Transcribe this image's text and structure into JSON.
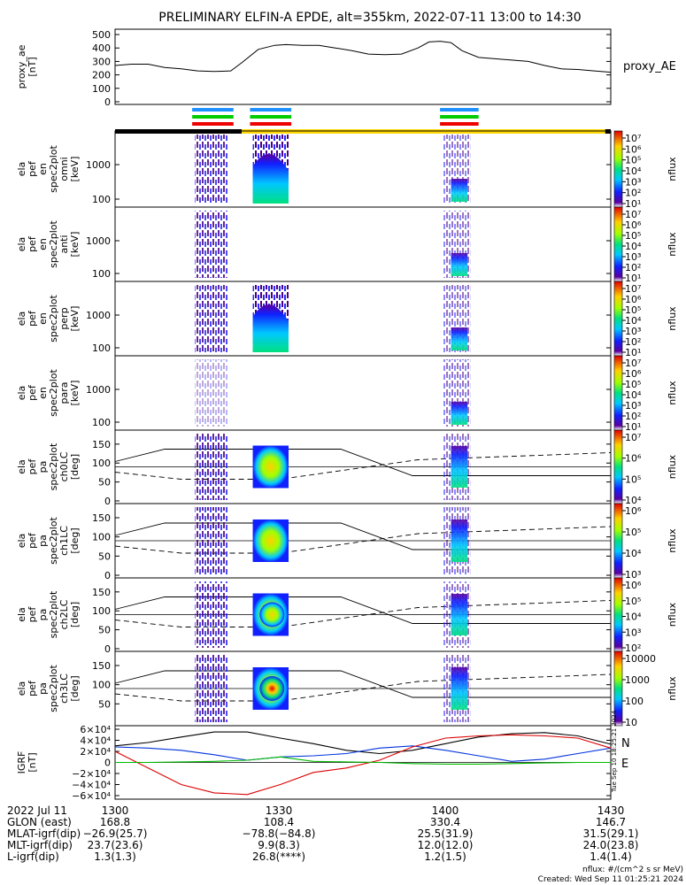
{
  "title": "PRELIMINARY ELFIN-A EPDE, alt=355km, 2022-07-11 13:00 to 14:30",
  "chart_data": {
    "type": "multi-panel",
    "time_range": [
      "13:00",
      "14:30"
    ],
    "panels": [
      {
        "id": "proxy_ae",
        "type": "line",
        "ylabel": [
          "proxy_ae",
          "[nT]"
        ],
        "legend": "proxy_AE",
        "ylim": [
          0,
          520
        ],
        "yticks": [
          "500",
          "400",
          "300",
          "200",
          "100",
          "0"
        ],
        "x_minutes": [
          0,
          3,
          6,
          9,
          12,
          15,
          18,
          21,
          23,
          26,
          29,
          31,
          34,
          37,
          40,
          43,
          46,
          49,
          52,
          55,
          57,
          59,
          61,
          63,
          66,
          69,
          72,
          75,
          78,
          81,
          84,
          87,
          90
        ],
        "values": [
          270,
          280,
          280,
          255,
          245,
          230,
          225,
          230,
          290,
          390,
          420,
          425,
          420,
          420,
          400,
          380,
          355,
          350,
          355,
          400,
          445,
          450,
          440,
          380,
          330,
          320,
          310,
          300,
          270,
          245,
          240,
          230,
          220
        ]
      },
      {
        "id": "omni",
        "type": "spectrogram",
        "ylabel": [
          "ela",
          "pef",
          "en",
          "spec2plot",
          "omni",
          "[keV]"
        ],
        "yticks": [
          "1000",
          "100"
        ],
        "colorbar": {
          "label": "nflux",
          "ticks": [
            "10⁷",
            "10⁶",
            "10⁵",
            "10⁴",
            "10³",
            "10²",
            "10¹"
          ]
        }
      },
      {
        "id": "anti",
        "type": "spectrogram",
        "ylabel": [
          "ela",
          "pef",
          "en",
          "spec2plot",
          "anti",
          "[keV]"
        ],
        "yticks": [
          "1000",
          "100"
        ],
        "colorbar": {
          "label": "nflux",
          "ticks": [
            "10⁷",
            "10⁶",
            "10⁵",
            "10⁴",
            "10³",
            "10²",
            "10¹"
          ]
        }
      },
      {
        "id": "perp",
        "type": "spectrogram",
        "ylabel": [
          "ela",
          "pef",
          "en",
          "spec2plot",
          "perp",
          "[keV]"
        ],
        "yticks": [
          "1000",
          "100"
        ],
        "colorbar": {
          "label": "nflux",
          "ticks": [
            "10⁷",
            "10⁶",
            "10⁵",
            "10⁴",
            "10³",
            "10²",
            "10¹"
          ]
        }
      },
      {
        "id": "para",
        "type": "spectrogram",
        "ylabel": [
          "ela",
          "pef",
          "en",
          "spec2plot",
          "para",
          "[keV]"
        ],
        "yticks": [
          "1000",
          "100"
        ],
        "colorbar": {
          "label": "nflux",
          "ticks": [
            "10⁷",
            "10⁶",
            "10⁵",
            "10⁴",
            "10³",
            "10²",
            "10¹"
          ]
        }
      },
      {
        "id": "ch0LC",
        "type": "spectrogram",
        "ylabel": [
          "ela",
          "pef",
          "pa",
          "spec2plot",
          "ch0LC",
          "[deg]"
        ],
        "yticks": [
          "150",
          "100",
          "50",
          "0"
        ],
        "colorbar": {
          "label": "nflux",
          "ticks": [
            "10⁷",
            "10⁶",
            "10⁵",
            "10⁴"
          ]
        }
      },
      {
        "id": "ch1LC",
        "type": "spectrogram",
        "ylabel": [
          "ela",
          "pef",
          "pa",
          "spec2plot",
          "ch1LC",
          "[deg]"
        ],
        "yticks": [
          "150",
          "100",
          "50",
          "0"
        ],
        "colorbar": {
          "label": "nflux",
          "ticks": [
            "10⁶",
            "10⁵",
            "10⁴",
            "10³"
          ]
        }
      },
      {
        "id": "ch2LC",
        "type": "spectrogram",
        "ylabel": [
          "ela",
          "pef",
          "pa",
          "spec2plot",
          "ch2LC",
          "[deg]"
        ],
        "yticks": [
          "150",
          "100",
          "50",
          "0"
        ],
        "colorbar": {
          "label": "nflux",
          "ticks": [
            "10⁶",
            "10⁵",
            "10⁴",
            "10³",
            "10²"
          ]
        }
      },
      {
        "id": "ch3LC",
        "type": "spectrogram",
        "ylabel": [
          "ela",
          "pef",
          "pa",
          "spec2plot",
          "ch3LC",
          "[deg]"
        ],
        "yticks": [
          "150",
          "100",
          "50"
        ],
        "colorbar": {
          "label": "nflux",
          "ticks": [
            "10000",
            "1000",
            "100",
            "10"
          ]
        }
      },
      {
        "id": "igrf",
        "type": "line",
        "ylabel": [
          "IGRF",
          "[nT]"
        ],
        "yticks": [
          "6×10⁴",
          "4×10⁴",
          "2×10⁴",
          "0",
          "−2×10⁴",
          "−4×10⁴",
          "−6×10⁴"
        ],
        "ylim": [
          -60000,
          60000
        ],
        "legend": [
          "N",
          "E"
        ],
        "x_minutes": [
          0,
          6,
          12,
          18,
          24,
          30,
          36,
          42,
          48,
          54,
          60,
          66,
          72,
          78,
          84,
          90
        ],
        "series": [
          {
            "color": "#000000",
            "values": [
              30000,
              36000,
              46000,
              55000,
              55000,
              44000,
              34000,
              22000,
              16000,
              22000,
              34000,
              46000,
              52000,
              54000,
              48000,
              33000
            ]
          },
          {
            "color": "#0033dd",
            "values": [
              28000,
              26000,
              22000,
              14000,
              4000,
              10000,
              12000,
              16000,
              26000,
              30000,
              22000,
              12000,
              2000,
              6000,
              16000,
              26000
            ]
          },
          {
            "color": "#dd0000",
            "values": [
              20000,
              -10000,
              -40000,
              -55000,
              -58000,
              -40000,
              -18000,
              -10000,
              4000,
              28000,
              44000,
              48000,
              50000,
              48000,
              44000,
              26000
            ]
          },
          {
            "color": "#00bb00",
            "values": [
              0,
              0,
              1000,
              2000,
              4000,
              10000,
              2000,
              1000,
              0,
              -2000,
              -3000,
              -3000,
              -2000,
              -1000,
              0,
              0
            ]
          }
        ]
      }
    ],
    "orbit_bar": {
      "segments": [
        {
          "color": "#000000",
          "from": 0,
          "to": 23
        },
        {
          "color": "#ffd700",
          "from": 23,
          "to": 89
        },
        {
          "color": "#000000",
          "from": 89,
          "to": 90
        }
      ]
    },
    "fgm_bars": {
      "intervals_minutes": [
        [
          14,
          21.5
        ],
        [
          24.5,
          32
        ],
        [
          59,
          66
        ]
      ]
    }
  },
  "footer": {
    "labels": [
      "2022 Jul 11",
      "GLON (east)",
      "MLAT-igrf(dip)",
      "MLT-igrf(dip)",
      "L-igrf(dip)"
    ],
    "columns": [
      {
        "time": "1300",
        "glon": "168.8",
        "mlat": "−26.9(25.7)",
        "mlt": "23.7(23.6)",
        "l": "1.3(1.3)"
      },
      {
        "time": "1330",
        "glon": "108.4",
        "mlat": "−78.8(−84.8)",
        "mlt": "9.9(8.3)",
        "l": "26.8(****)"
      },
      {
        "time": "1400",
        "glon": "330.4",
        "mlat": "25.5(31.9)",
        "mlt": "12.0(12.0)",
        "l": "1.2(1.5)"
      },
      {
        "time": "1430",
        "glon": "146.7",
        "mlat": "31.5(29.1)",
        "mlt": "24.0(23.8)",
        "l": "1.4(1.4)"
      }
    ],
    "units_note": "nflux: #/(cm^2 s sr MeV)",
    "created": "Created: Wed Sep 11 01:25:21 2024",
    "side_stamp": "Tue Sep 10 18:25:21 2024"
  }
}
